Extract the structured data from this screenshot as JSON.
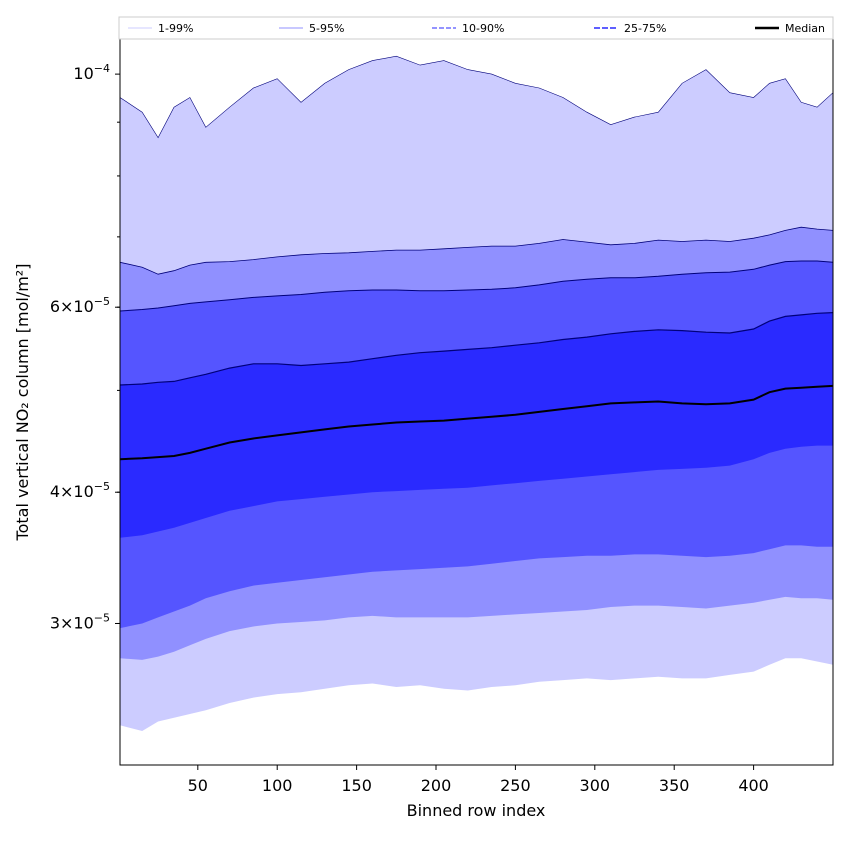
{
  "chart_data": {
    "type": "area",
    "title": "",
    "xlabel": "Binned row index",
    "ylabel": "Total vertical NO₂ column [mol/m²]",
    "xlim": [
      1,
      450
    ],
    "ylim": [
      2.2e-05,
      0.000108
    ],
    "yscale": "log",
    "x_ticks": [
      50,
      100,
      150,
      200,
      250,
      300,
      350,
      400
    ],
    "y_ticks": [
      {
        "value": 0.0001,
        "mantissa": "",
        "exp": "−4"
      },
      {
        "value": 6e-05,
        "mantissa": "6",
        "exp": "−5"
      },
      {
        "value": 4e-05,
        "mantissa": "4",
        "exp": "−5"
      },
      {
        "value": 3e-05,
        "mantissa": "3",
        "exp": "−5"
      }
    ],
    "legend_position": "top, full width",
    "legend": [
      "1-99%",
      "5-95%",
      "10-90%",
      "25-75%",
      "Median"
    ],
    "colors": {
      "band_1_99": "#ccccff",
      "band_5_95": "#9090ff",
      "band_10_90": "#5555ff",
      "band_25_75": "#2a2aff",
      "median": "#000000",
      "edge": "#00007a"
    },
    "x": [
      1,
      15,
      25,
      35,
      45,
      55,
      70,
      85,
      100,
      115,
      130,
      145,
      160,
      175,
      190,
      205,
      220,
      235,
      250,
      265,
      280,
      295,
      310,
      325,
      340,
      355,
      370,
      385,
      400,
      410,
      420,
      430,
      440,
      450
    ],
    "series": [
      {
        "name": "p01",
        "values": [
          2.4e-05,
          2.37e-05,
          2.42e-05,
          2.44e-05,
          2.46e-05,
          2.48e-05,
          2.52e-05,
          2.55e-05,
          2.57e-05,
          2.58e-05,
          2.6e-05,
          2.62e-05,
          2.63e-05,
          2.61e-05,
          2.62e-05,
          2.6e-05,
          2.59e-05,
          2.61e-05,
          2.62e-05,
          2.64e-05,
          2.65e-05,
          2.66e-05,
          2.65e-05,
          2.66e-05,
          2.67e-05,
          2.66e-05,
          2.66e-05,
          2.68e-05,
          2.7e-05,
          2.74e-05,
          2.78e-05,
          2.78e-05,
          2.76e-05,
          2.74e-05
        ]
      },
      {
        "name": "p05",
        "values": [
          2.78e-05,
          2.77e-05,
          2.79e-05,
          2.82e-05,
          2.86e-05,
          2.9e-05,
          2.95e-05,
          2.98e-05,
          3e-05,
          3.01e-05,
          3.02e-05,
          3.04e-05,
          3.05e-05,
          3.04e-05,
          3.04e-05,
          3.04e-05,
          3.04e-05,
          3.05e-05,
          3.06e-05,
          3.07e-05,
          3.08e-05,
          3.09e-05,
          3.11e-05,
          3.12e-05,
          3.12e-05,
          3.11e-05,
          3.1e-05,
          3.12e-05,
          3.14e-05,
          3.16e-05,
          3.18e-05,
          3.17e-05,
          3.17e-05,
          3.16e-05
        ]
      },
      {
        "name": "p10",
        "values": [
          2.97e-05,
          3e-05,
          3.04e-05,
          3.08e-05,
          3.12e-05,
          3.17e-05,
          3.22e-05,
          3.26e-05,
          3.28e-05,
          3.3e-05,
          3.32e-05,
          3.34e-05,
          3.36e-05,
          3.37e-05,
          3.38e-05,
          3.39e-05,
          3.4e-05,
          3.42e-05,
          3.44e-05,
          3.46e-05,
          3.47e-05,
          3.48e-05,
          3.48e-05,
          3.49e-05,
          3.49e-05,
          3.48e-05,
          3.47e-05,
          3.48e-05,
          3.5e-05,
          3.53e-05,
          3.56e-05,
          3.56e-05,
          3.55e-05,
          3.55e-05
        ]
      },
      {
        "name": "p25",
        "values": [
          3.62e-05,
          3.64e-05,
          3.67e-05,
          3.7e-05,
          3.74e-05,
          3.78e-05,
          3.84e-05,
          3.88e-05,
          3.92e-05,
          3.94e-05,
          3.96e-05,
          3.98e-05,
          4e-05,
          4.01e-05,
          4.02e-05,
          4.03e-05,
          4.04e-05,
          4.06e-05,
          4.08e-05,
          4.1e-05,
          4.12e-05,
          4.14e-05,
          4.16e-05,
          4.18e-05,
          4.2e-05,
          4.21e-05,
          4.22e-05,
          4.24e-05,
          4.3e-05,
          4.36e-05,
          4.4e-05,
          4.42e-05,
          4.43e-05,
          4.43e-05
        ]
      },
      {
        "name": "Median",
        "values": [
          4.3e-05,
          4.31e-05,
          4.32e-05,
          4.33e-05,
          4.36e-05,
          4.4e-05,
          4.46e-05,
          4.5e-05,
          4.53e-05,
          4.56e-05,
          4.59e-05,
          4.62e-05,
          4.64e-05,
          4.66e-05,
          4.67e-05,
          4.68e-05,
          4.7e-05,
          4.72e-05,
          4.74e-05,
          4.77e-05,
          4.8e-05,
          4.83e-05,
          4.86e-05,
          4.87e-05,
          4.88e-05,
          4.86e-05,
          4.85e-05,
          4.86e-05,
          4.9e-05,
          4.98e-05,
          5.02e-05,
          5.03e-05,
          5.04e-05,
          5.05e-05
        ]
      },
      {
        "name": "p75",
        "values": [
          5.06e-05,
          5.07e-05,
          5.09e-05,
          5.1e-05,
          5.14e-05,
          5.18e-05,
          5.25e-05,
          5.3e-05,
          5.3e-05,
          5.28e-05,
          5.3e-05,
          5.32e-05,
          5.36e-05,
          5.4e-05,
          5.43e-05,
          5.45e-05,
          5.47e-05,
          5.49e-05,
          5.52e-05,
          5.55e-05,
          5.59e-05,
          5.62e-05,
          5.66e-05,
          5.69e-05,
          5.71e-05,
          5.7e-05,
          5.68e-05,
          5.67e-05,
          5.72e-05,
          5.82e-05,
          5.88e-05,
          5.9e-05,
          5.92e-05,
          5.93e-05
        ]
      },
      {
        "name": "p90",
        "values": [
          5.95e-05,
          5.97e-05,
          5.99e-05,
          6.02e-05,
          6.05e-05,
          6.07e-05,
          6.1e-05,
          6.13e-05,
          6.15e-05,
          6.17e-05,
          6.2e-05,
          6.22e-05,
          6.23e-05,
          6.23e-05,
          6.22e-05,
          6.22e-05,
          6.23e-05,
          6.24e-05,
          6.26e-05,
          6.3e-05,
          6.35e-05,
          6.38e-05,
          6.4e-05,
          6.4e-05,
          6.42e-05,
          6.45e-05,
          6.47e-05,
          6.48e-05,
          6.52e-05,
          6.58e-05,
          6.63e-05,
          6.64e-05,
          6.64e-05,
          6.62e-05
        ]
      },
      {
        "name": "p95",
        "values": [
          6.62e-05,
          6.55e-05,
          6.45e-05,
          6.5e-05,
          6.58e-05,
          6.62e-05,
          6.63e-05,
          6.66e-05,
          6.7e-05,
          6.73e-05,
          6.75e-05,
          6.76e-05,
          6.78e-05,
          6.8e-05,
          6.8e-05,
          6.82e-05,
          6.84e-05,
          6.86e-05,
          6.86e-05,
          6.9e-05,
          6.96e-05,
          6.92e-05,
          6.88e-05,
          6.9e-05,
          6.95e-05,
          6.93e-05,
          6.95e-05,
          6.93e-05,
          6.98e-05,
          7.03e-05,
          7.1e-05,
          7.15e-05,
          7.12e-05,
          7.1e-05
        ]
      },
      {
        "name": "p99",
        "values": [
          9.5e-05,
          9.2e-05,
          8.7e-05,
          9.3e-05,
          9.5e-05,
          8.9e-05,
          9.3e-05,
          9.7e-05,
          9.9e-05,
          9.4e-05,
          9.8e-05,
          0.000101,
          0.000103,
          0.000104,
          0.000102,
          0.000103,
          0.000101,
          0.0001,
          9.8e-05,
          9.7e-05,
          9.5e-05,
          9.2e-05,
          8.95e-05,
          9.1e-05,
          9.2e-05,
          9.8e-05,
          0.000101,
          9.6e-05,
          9.5e-05,
          9.8e-05,
          9.9e-05,
          9.4e-05,
          9.3e-05,
          9.6e-05
        ]
      }
    ]
  }
}
